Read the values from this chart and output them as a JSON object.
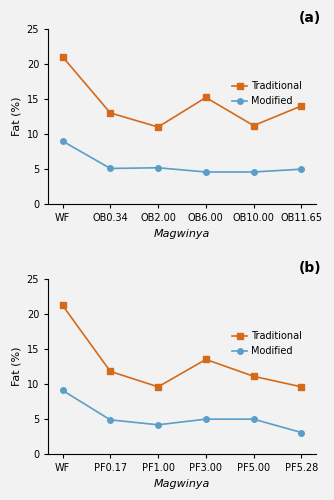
{
  "subplot_a": {
    "label": "(a)",
    "x_labels": [
      "WF",
      "OB0.34",
      "OB2.00",
      "OB6.00",
      "OB10.00",
      "OB11.65"
    ],
    "traditional": [
      21.0,
      13.0,
      11.0,
      15.2,
      11.2,
      14.0
    ],
    "modified": [
      9.0,
      5.1,
      5.2,
      4.6,
      4.6,
      5.0
    ],
    "xlabel": "Magwinya",
    "ylabel": "Fat (%)",
    "ylim": [
      0,
      25
    ],
    "yticks": [
      0,
      5,
      10,
      15,
      20,
      25
    ]
  },
  "subplot_b": {
    "label": "(b)",
    "x_labels": [
      "WF",
      "PF0.17",
      "PF1.00",
      "PF3.00",
      "PF5.00",
      "PF5.28"
    ],
    "traditional": [
      21.2,
      11.8,
      9.6,
      13.5,
      11.1,
      9.6
    ],
    "modified": [
      9.1,
      4.9,
      4.2,
      5.0,
      5.0,
      3.1
    ],
    "xlabel": "Magwinya",
    "ylabel": "Fat (%)",
    "ylim": [
      0,
      25
    ],
    "yticks": [
      0,
      5,
      10,
      15,
      20,
      25
    ]
  },
  "traditional_color": "#D46A1A",
  "modified_color": "#5B9EC9",
  "traditional_label": "Traditional",
  "modified_label": "Modified",
  "marker_traditional": "s",
  "marker_modified": "o",
  "linewidth": 1.2,
  "markersize": 4,
  "bg_color": "#F2F2F2"
}
